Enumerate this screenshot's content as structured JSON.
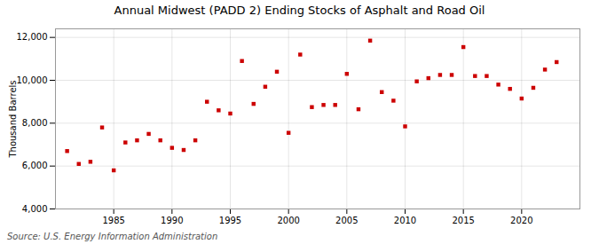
{
  "chart_data": {
    "type": "scatter",
    "title": "Annual Midwest (PADD 2) Ending Stocks of Asphalt and Road Oil",
    "ylabel": "Thousand Barrels",
    "source": "Source: U.S. Energy Information Administration",
    "x": [
      1981,
      1982,
      1983,
      1984,
      1985,
      1986,
      1987,
      1988,
      1989,
      1990,
      1991,
      1992,
      1993,
      1994,
      1995,
      1996,
      1997,
      1998,
      1999,
      2000,
      2001,
      2002,
      2003,
      2004,
      2005,
      2006,
      2007,
      2008,
      2009,
      2010,
      2011,
      2012,
      2013,
      2014,
      2015,
      2016,
      2017,
      2018,
      2019,
      2020,
      2021,
      2022,
      2023
    ],
    "values": [
      6700,
      6100,
      6200,
      7800,
      5800,
      7100,
      7200,
      7500,
      7200,
      6850,
      6750,
      7200,
      9000,
      8600,
      8450,
      10900,
      8900,
      9700,
      10400,
      7550,
      11200,
      8750,
      8850,
      8850,
      10300,
      8650,
      11850,
      9450,
      9050,
      7850,
      9950,
      10100,
      10250,
      10250,
      11550,
      10200,
      10200,
      9800,
      9600,
      9150,
      9650,
      10500,
      10850
    ],
    "color": "#cc0000",
    "marker": "square",
    "xlim": [
      1980,
      2025
    ],
    "xticks": [
      1985,
      1990,
      1995,
      2000,
      2005,
      2010,
      2015,
      2020
    ],
    "ylim": [
      4000,
      12400
    ],
    "yticks": [
      {
        "value": 4000,
        "label": "4,000"
      },
      {
        "value": 6000,
        "label": "6,000"
      },
      {
        "value": 8000,
        "label": "8,000"
      },
      {
        "value": 10000,
        "label": "10,000"
      },
      {
        "value": 12000,
        "label": "12,000"
      }
    ],
    "grid": true
  }
}
